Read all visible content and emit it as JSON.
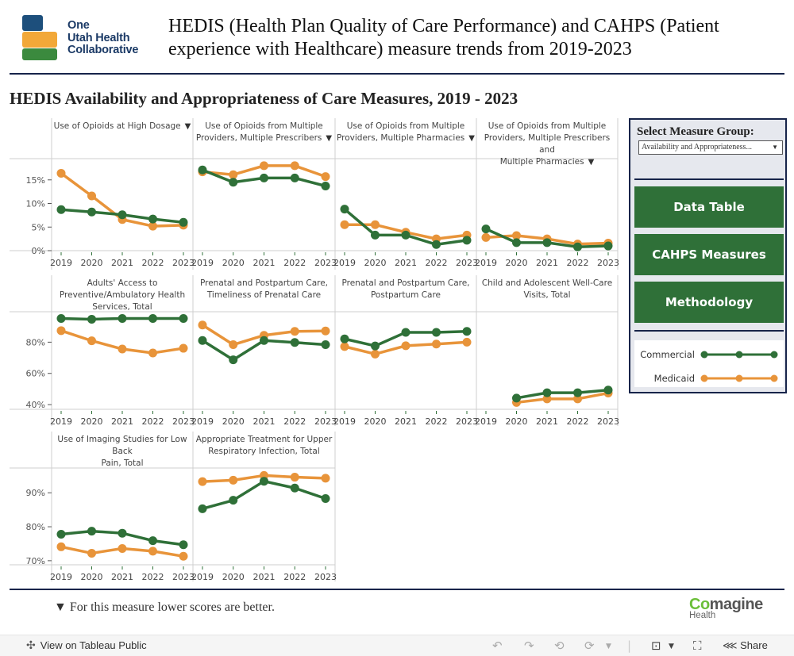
{
  "header": {
    "logo_lines": [
      "One",
      "Utah Health",
      "Collaborative"
    ],
    "title": "HEDIS (Health Plan Quality of Care Performance) and CAHPS (Patient experience with Healthcare) measure trends from 2019-2023"
  },
  "section_title": "HEDIS Availability and Appropriateness of Care Measures, 2019 - 2023",
  "sidebar": {
    "select_label": "Select Measure Group:",
    "select_value": "Availability and Appropriateness...",
    "buttons": [
      "Data Table",
      "CAHPS Measures",
      "Methodology"
    ],
    "legend": [
      {
        "name": "Commercial",
        "color": "#2f7038"
      },
      {
        "name": "Medicaid",
        "color": "#e8943a"
      }
    ]
  },
  "footer": {
    "footnote": "▼ For this measure lower scores are better.",
    "brand_co": "Co",
    "brand_rest": "magine",
    "brand_sub": "Health"
  },
  "toolbar": {
    "view_on": "View on Tableau Public",
    "share": "Share"
  },
  "chart_data": {
    "type": "line",
    "x": [
      2019,
      2020,
      2021,
      2022,
      2023
    ],
    "legend": [
      "Commercial",
      "Medicaid"
    ],
    "colors": {
      "Commercial": "#2f7038",
      "Medicaid": "#e8943a"
    },
    "lower_is_better_marker": "▼",
    "rows": [
      {
        "yunit": "%",
        "ylim": [
          0,
          19.5
        ],
        "yticks": [
          0,
          5,
          10,
          15
        ],
        "ytick_labels": [
          "0%",
          "5%",
          "10%",
          "15%"
        ],
        "panels": [
          {
            "title": [
              "Use of Opioids at High Dosage"
            ],
            "lower_is_better": true,
            "series": [
              {
                "name": "Commercial",
                "values": [
                  8.7,
                  8.2,
                  7.6,
                  6.7,
                  6.0
                ]
              },
              {
                "name": "Medicaid",
                "values": [
                  16.4,
                  11.6,
                  6.6,
                  5.2,
                  5.4
                ]
              }
            ]
          },
          {
            "title": [
              "Use of Opioids from Multiple",
              "Providers, Multiple Prescribers"
            ],
            "lower_is_better": true,
            "series": [
              {
                "name": "Commercial",
                "values": [
                  17.1,
                  14.5,
                  15.4,
                  15.4,
                  13.7
                ]
              },
              {
                "name": "Medicaid",
                "values": [
                  16.7,
                  16.1,
                  18.0,
                  18.0,
                  15.7
                ]
              }
            ]
          },
          {
            "title": [
              "Use of Opioids from Multiple",
              "Providers, Multiple Pharmacies"
            ],
            "lower_is_better": true,
            "series": [
              {
                "name": "Commercial",
                "values": [
                  8.8,
                  3.3,
                  3.3,
                  1.3,
                  2.2
                ]
              },
              {
                "name": "Medicaid",
                "values": [
                  5.5,
                  5.5,
                  3.9,
                  2.5,
                  3.3
                ]
              }
            ]
          },
          {
            "title": [
              "Use of Opioids from Multiple",
              "Providers, Multiple Prescribers and",
              "Multiple Pharmacies"
            ],
            "lower_is_better": true,
            "series": [
              {
                "name": "Commercial",
                "values": [
                  4.6,
                  1.7,
                  1.7,
                  0.8,
                  1.0
                ]
              },
              {
                "name": "Medicaid",
                "values": [
                  2.8,
                  3.2,
                  2.5,
                  1.4,
                  1.6
                ]
              }
            ]
          }
        ]
      },
      {
        "yunit": "%",
        "ylim": [
          37,
          99.5
        ],
        "yticks": [
          40,
          60,
          80
        ],
        "ytick_labels": [
          "40%",
          "60%",
          "80%"
        ],
        "panels": [
          {
            "title": [
              "Adults' Access to",
              "Preventive/Ambulatory Health",
              "Services, Total"
            ],
            "lower_is_better": false,
            "series": [
              {
                "name": "Commercial",
                "values": [
                  95.2,
                  94.7,
                  95.2,
                  95.2,
                  95.2
                ]
              },
              {
                "name": "Medicaid",
                "values": [
                  87.4,
                  80.9,
                  75.6,
                  73.1,
                  76.1
                ]
              }
            ]
          },
          {
            "title": [
              "Prenatal and Postpartum Care,",
              "Timeliness of Prenatal Care"
            ],
            "lower_is_better": false,
            "series": [
              {
                "name": "Commercial",
                "values": [
                  81.1,
                  68.7,
                  81.1,
                  79.8,
                  78.4
                ]
              },
              {
                "name": "Medicaid",
                "values": [
                  91.0,
                  78.4,
                  84.4,
                  86.9,
                  87.2
                ]
              }
            ]
          },
          {
            "title": [
              "Prenatal and Postpartum Care,",
              "Postpartum Care"
            ],
            "lower_is_better": false,
            "series": [
              {
                "name": "Commercial",
                "values": [
                  82.1,
                  77.6,
                  86.3,
                  86.3,
                  86.9
                ]
              },
              {
                "name": "Medicaid",
                "values": [
                  77.2,
                  72.4,
                  77.7,
                  78.8,
                  80.0
                ]
              }
            ]
          },
          {
            "title": [
              "Child and Adolescent Well-Care",
              "Visits, Total"
            ],
            "lower_is_better": false,
            "series": [
              {
                "name": "Commercial",
                "values": [
                  null,
                  44.2,
                  47.6,
                  47.6,
                  49.3
                ]
              },
              {
                "name": "Medicaid",
                "values": [
                  null,
                  41.4,
                  43.7,
                  43.7,
                  47.4
                ]
              }
            ]
          }
        ]
      },
      {
        "yunit": "%",
        "ylim": [
          68.8,
          97.3
        ],
        "yticks": [
          70,
          80,
          90
        ],
        "ytick_labels": [
          "70%",
          "80%",
          "90%"
        ],
        "panels": [
          {
            "title": [
              "Use of Imaging Studies for Low Back",
              "Pain, Total"
            ],
            "lower_is_better": false,
            "series": [
              {
                "name": "Commercial",
                "values": [
                  77.8,
                  78.7,
                  78.1,
                  75.9,
                  74.7
                ]
              },
              {
                "name": "Medicaid",
                "values": [
                  74.1,
                  72.2,
                  73.6,
                  72.8,
                  71.3
                ]
              }
            ]
          },
          {
            "title": [
              "Appropriate Treatment for Upper",
              "Respiratory Infection, Total"
            ],
            "lower_is_better": false,
            "series": [
              {
                "name": "Commercial",
                "values": [
                  85.3,
                  87.8,
                  93.4,
                  91.4,
                  88.3
                ]
              },
              {
                "name": "Medicaid",
                "values": [
                  93.3,
                  93.7,
                  95.1,
                  94.6,
                  94.3
                ]
              }
            ]
          }
        ]
      }
    ]
  }
}
